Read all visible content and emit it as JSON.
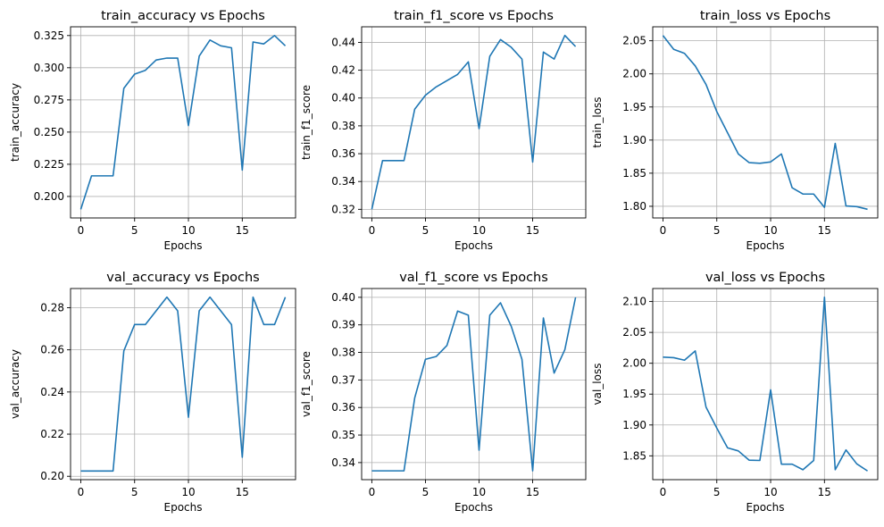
{
  "chart_data": [
    {
      "type": "line",
      "title": "train_accuracy vs Epochs",
      "xlabel": "Epochs",
      "ylabel": "train_accuracy",
      "x": [
        0,
        1,
        2,
        3,
        4,
        5,
        6,
        7,
        8,
        9,
        10,
        11,
        12,
        13,
        14,
        15,
        16,
        17,
        18,
        19
      ],
      "series": [
        {
          "values": [
            0.19,
            0.216,
            0.216,
            0.216,
            0.284,
            0.295,
            0.298,
            0.306,
            0.3075,
            0.3075,
            0.255,
            0.309,
            0.3215,
            0.317,
            0.3155,
            0.2205,
            0.32,
            0.3185,
            0.325,
            0.317
          ]
        }
      ],
      "xlim": [
        -0.95,
        19.95
      ],
      "ylim": [
        0.1833,
        0.3318
      ],
      "xticks": [
        0,
        5,
        10,
        15
      ],
      "yticks": [
        0.2,
        0.225,
        0.25,
        0.275,
        0.3,
        0.325
      ],
      "ytick_labels": [
        "0.200",
        "0.225",
        "0.250",
        "0.275",
        "0.300",
        "0.325"
      ],
      "grid": true
    },
    {
      "type": "line",
      "title": "train_f1_score vs Epochs",
      "xlabel": "Epochs",
      "ylabel": "train_f1_score",
      "x": [
        0,
        1,
        2,
        3,
        4,
        5,
        6,
        7,
        8,
        9,
        10,
        11,
        12,
        13,
        14,
        15,
        16,
        17,
        18,
        19
      ],
      "series": [
        {
          "values": [
            0.32,
            0.355,
            0.355,
            0.355,
            0.392,
            0.402,
            0.408,
            0.4125,
            0.417,
            0.426,
            0.378,
            0.43,
            0.442,
            0.4365,
            0.428,
            0.354,
            0.433,
            0.428,
            0.445,
            0.437
          ]
        }
      ],
      "xlim": [
        -0.95,
        19.95
      ],
      "ylim": [
        0.3138,
        0.4512
      ],
      "xticks": [
        0,
        5,
        10,
        15
      ],
      "yticks": [
        0.32,
        0.34,
        0.36,
        0.38,
        0.4,
        0.42,
        0.44
      ],
      "ytick_labels": [
        "0.32",
        "0.34",
        "0.36",
        "0.38",
        "0.40",
        "0.42",
        "0.44"
      ],
      "grid": true
    },
    {
      "type": "line",
      "title": "train_loss vs Epochs",
      "xlabel": "Epochs",
      "ylabel": "train_loss",
      "x": [
        0,
        1,
        2,
        3,
        4,
        5,
        6,
        7,
        8,
        9,
        10,
        11,
        12,
        13,
        14,
        15,
        16,
        17,
        18,
        19
      ],
      "series": [
        {
          "values": [
            2.058,
            2.037,
            2.031,
            2.012,
            1.984,
            1.943,
            1.911,
            1.879,
            1.866,
            1.865,
            1.867,
            1.879,
            1.828,
            1.8185,
            1.8185,
            1.7985,
            1.895,
            1.8005,
            1.7995,
            1.7955
          ]
        }
      ],
      "xlim": [
        -0.95,
        19.95
      ],
      "ylim": [
        1.7824,
        2.0711
      ],
      "xticks": [
        0,
        5,
        10,
        15
      ],
      "yticks": [
        1.8,
        1.85,
        1.9,
        1.95,
        2.0,
        2.05
      ],
      "ytick_labels": [
        "1.80",
        "1.85",
        "1.90",
        "1.95",
        "2.00",
        "2.05"
      ],
      "grid": true
    },
    {
      "type": "line",
      "title": "val_accuracy vs Epochs",
      "xlabel": "Epochs",
      "ylabel": "val_accuracy",
      "x": [
        0,
        1,
        2,
        3,
        4,
        5,
        6,
        7,
        8,
        9,
        10,
        11,
        12,
        13,
        14,
        15,
        16,
        17,
        18,
        19
      ],
      "series": [
        {
          "values": [
            0.2025,
            0.2025,
            0.2025,
            0.2025,
            0.2595,
            0.272,
            0.272,
            0.2785,
            0.285,
            0.2785,
            0.228,
            0.2785,
            0.285,
            0.2785,
            0.272,
            0.209,
            0.285,
            0.272,
            0.272,
            0.285
          ]
        }
      ],
      "xlim": [
        -0.95,
        19.95
      ],
      "ylim": [
        0.1984,
        0.2891
      ],
      "xticks": [
        0,
        5,
        10,
        15
      ],
      "yticks": [
        0.2,
        0.22,
        0.24,
        0.26,
        0.28
      ],
      "ytick_labels": [
        "0.20",
        "0.22",
        "0.24",
        "0.26",
        "0.28"
      ],
      "grid": true
    },
    {
      "type": "line",
      "title": "val_f1_score vs Epochs",
      "xlabel": "Epochs",
      "ylabel": "val_f1_score",
      "x": [
        0,
        1,
        2,
        3,
        4,
        5,
        6,
        7,
        8,
        9,
        10,
        11,
        12,
        13,
        14,
        15,
        16,
        17,
        18,
        19
      ],
      "series": [
        {
          "values": [
            0.337,
            0.337,
            0.337,
            0.337,
            0.3635,
            0.3775,
            0.3785,
            0.3825,
            0.395,
            0.3935,
            0.3445,
            0.3935,
            0.398,
            0.3895,
            0.3775,
            0.337,
            0.3925,
            0.3725,
            0.381,
            0.4
          ]
        }
      ],
      "xlim": [
        -0.95,
        19.95
      ],
      "ylim": [
        0.3338,
        0.4032
      ],
      "xticks": [
        0,
        5,
        10,
        15
      ],
      "yticks": [
        0.34,
        0.35,
        0.36,
        0.37,
        0.38,
        0.39,
        0.4
      ],
      "ytick_labels": [
        "0.34",
        "0.35",
        "0.36",
        "0.37",
        "0.38",
        "0.39",
        "0.40"
      ],
      "grid": true
    },
    {
      "type": "line",
      "title": "val_loss vs Epochs",
      "xlabel": "Epochs",
      "ylabel": "val_loss",
      "x": [
        0,
        1,
        2,
        3,
        4,
        5,
        6,
        7,
        8,
        9,
        10,
        11,
        12,
        13,
        14,
        15,
        16,
        17,
        18,
        19
      ],
      "series": [
        {
          "values": [
            2.01,
            2.009,
            2.005,
            2.02,
            1.929,
            1.895,
            1.863,
            1.858,
            1.843,
            1.8425,
            1.957,
            1.8365,
            1.8365,
            1.8275,
            1.8425,
            2.107,
            1.8275,
            1.8595,
            1.837,
            1.8255
          ]
        }
      ],
      "xlim": [
        -0.95,
        19.95
      ],
      "ylim": [
        1.8114,
        2.1211
      ],
      "xticks": [
        0,
        5,
        10,
        15
      ],
      "yticks": [
        1.85,
        1.9,
        1.95,
        2.0,
        2.05,
        2.1
      ],
      "ytick_labels": [
        "1.85",
        "1.90",
        "1.95",
        "2.00",
        "2.05",
        "2.10"
      ],
      "grid": true
    }
  ]
}
